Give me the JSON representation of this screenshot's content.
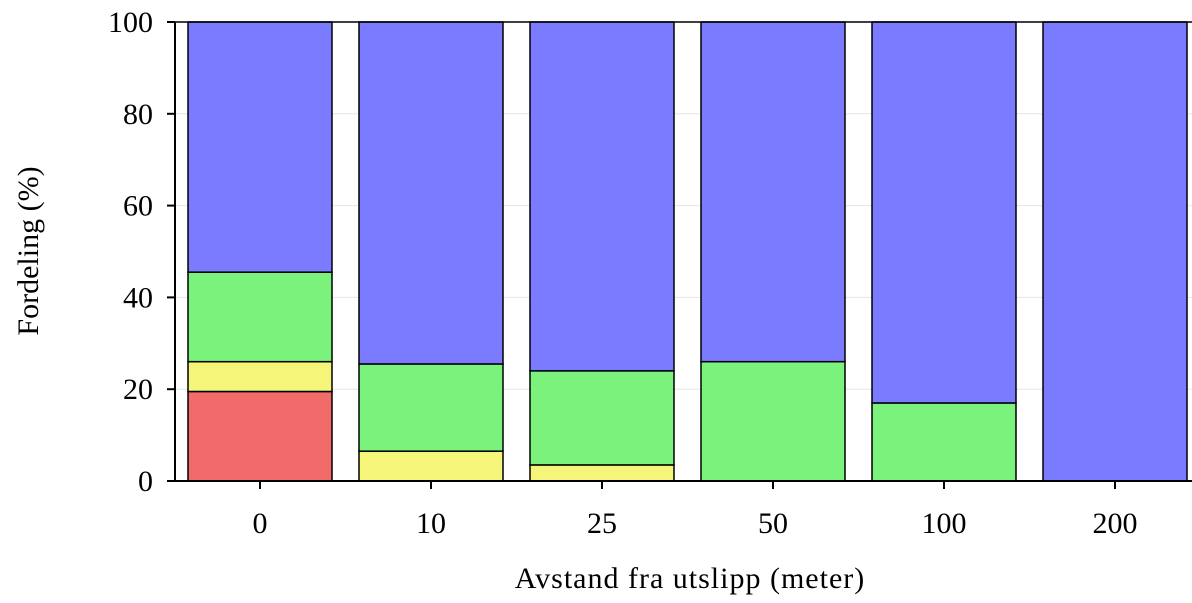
{
  "chart_data": {
    "type": "bar",
    "stacked": true,
    "categories": [
      "0",
      "10",
      "25",
      "50",
      "100",
      "200"
    ],
    "series": [
      {
        "color": "#f26b6b",
        "values": [
          19.5,
          0,
          0,
          0,
          0,
          0
        ]
      },
      {
        "color": "#f5f57a",
        "values": [
          6.5,
          6.5,
          3.5,
          0,
          0,
          0
        ]
      },
      {
        "color": "#7bf27b",
        "values": [
          19.5,
          19,
          20.5,
          26,
          17,
          0
        ]
      },
      {
        "color": "#7b7bff",
        "values": [
          54.5,
          74.5,
          76,
          74,
          83,
          100
        ]
      }
    ],
    "xlabel": "Avstand fra utslipp (meter)",
    "ylabel": "Fordeling (%)",
    "ylim": [
      0,
      100
    ],
    "yticks": [
      "0",
      "20",
      "40",
      "60",
      "80",
      "100"
    ],
    "grid": true
  }
}
